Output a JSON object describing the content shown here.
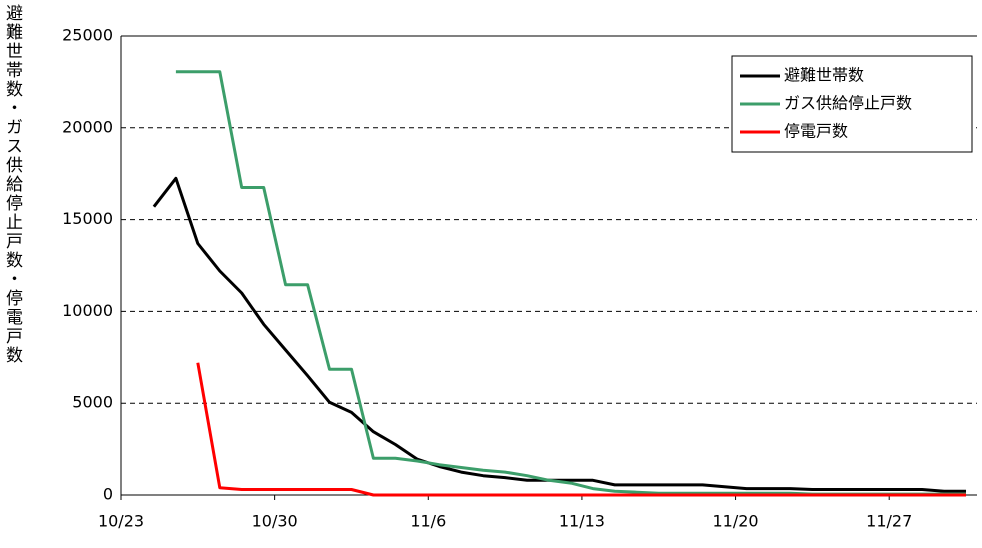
{
  "chart_data": {
    "type": "line",
    "y_label": "避難世帯数・ガス供給停止戸数・停電戸数",
    "categories": [
      "10/23",
      null,
      null,
      null,
      null,
      null,
      null,
      "10/30",
      null,
      null,
      null,
      null,
      null,
      null,
      "11/6",
      null,
      null,
      null,
      null,
      null,
      null,
      "11/13",
      null,
      null,
      null,
      null,
      null,
      null,
      "11/20",
      null,
      null,
      null,
      null,
      null,
      null,
      "11/27",
      null,
      null,
      null
    ],
    "series": [
      {
        "name": "避難世帯数",
        "color": "#000000",
        "values": [
          null,
          15700,
          17250,
          13700,
          12200,
          11000,
          9300,
          7900,
          6500,
          5050,
          4500,
          3450,
          2750,
          1950,
          1550,
          1250,
          1050,
          950,
          800,
          800,
          800,
          800,
          550,
          550,
          550,
          550,
          550,
          450,
          350,
          350,
          350,
          300,
          300,
          300,
          300,
          300,
          300,
          200,
          200
        ]
      },
      {
        "name": "ガス供給停止戸数",
        "color": "#3c9e6a",
        "values": [
          null,
          null,
          23050,
          23050,
          23050,
          16750,
          16750,
          11450,
          11450,
          6850,
          6850,
          2000,
          2000,
          1850,
          1650,
          1500,
          1350,
          1250,
          1050,
          800,
          650,
          350,
          200,
          150,
          100,
          100,
          100,
          100,
          100,
          100,
          100,
          50,
          50,
          50,
          50,
          50,
          50,
          50,
          50
        ]
      },
      {
        "name": "停電戸数",
        "color": "#ff0000",
        "values": [
          null,
          null,
          null,
          7200,
          400,
          300,
          300,
          300,
          300,
          300,
          300,
          0,
          0,
          0,
          0,
          0,
          0,
          0,
          0,
          0,
          0,
          0,
          0,
          0,
          0,
          0,
          0,
          0,
          0,
          0,
          0,
          0,
          0,
          0,
          0,
          0,
          0,
          0,
          0
        ]
      }
    ],
    "ylim": [
      0,
      25000
    ],
    "yticks": [
      0,
      5000,
      10000,
      15000,
      20000,
      25000
    ],
    "grid": true,
    "legend": "upper right"
  }
}
